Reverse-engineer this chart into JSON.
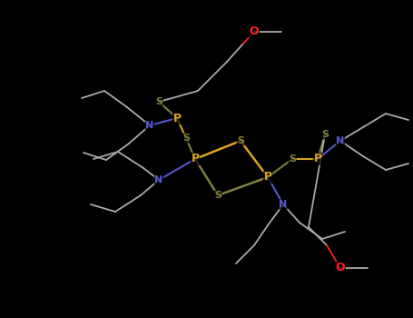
{
  "background_color": "#000000",
  "figsize": [
    4.55,
    3.5
  ],
  "dpi": 100,
  "colors": {
    "P": "#DAA520",
    "S": "#808040",
    "N": "#4040CC",
    "O": "#FF0000",
    "C": "#888888",
    "bond_PS": "#DAA520",
    "bond_SS": "#808040",
    "bond_CN": "#4444BB",
    "bond_CO": "#FF2020"
  },
  "sc": "#808040",
  "pc": "#DAA520",
  "nc": "#5555CC",
  "oc": "#FF2020",
  "cc": "#AAAAAA"
}
